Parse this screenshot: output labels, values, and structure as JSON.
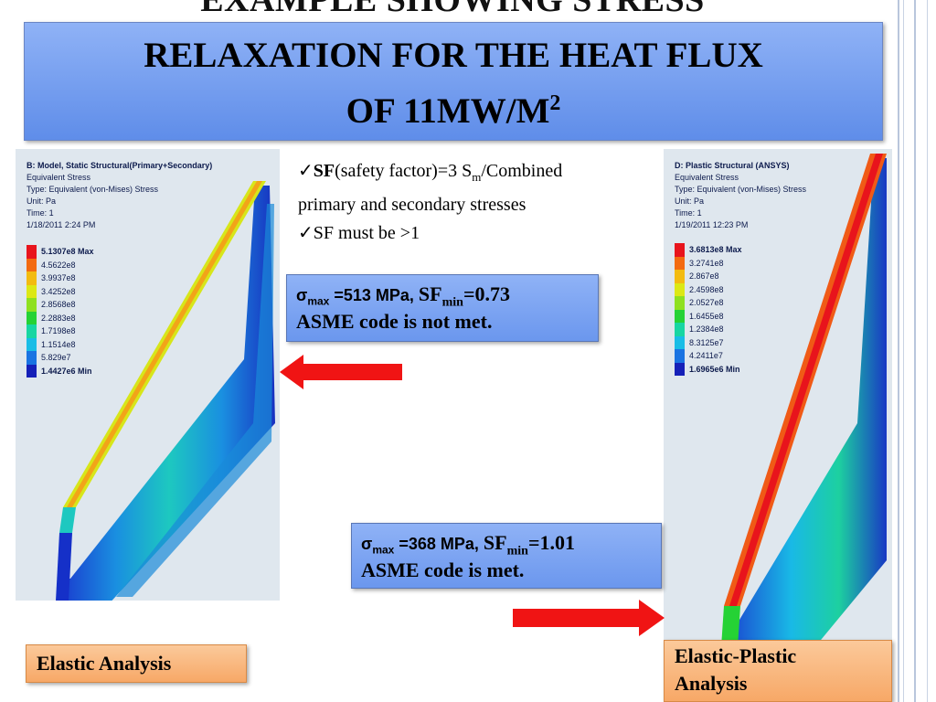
{
  "slide": {
    "title_cut": "EXAMPLE SHOWING STRESS",
    "title_line1": "RELAXATION  FOR THE HEAT FLUX",
    "title_line2": "OF 11MW/M",
    "title_sup": "2"
  },
  "bullets": [
    {
      "check": "✓",
      "bold": "SF",
      "text_a": "(safety factor)=3 S",
      "sub": "m",
      "text_b": "/Combined"
    },
    {
      "text": "primary and secondary stresses"
    },
    {
      "check": "✓",
      "text": "SF must be >1"
    }
  ],
  "left_panel": {
    "header": [
      "B: Model, Static Structural(Primary+Secondary)",
      "Equivalent Stress",
      "Type: Equivalent (von-Mises) Stress",
      "Unit: Pa",
      "Time: 1",
      "1/18/2011 2:24 PM"
    ],
    "legend": [
      {
        "label": "5.1307e8 Max",
        "color": "#e8141c"
      },
      {
        "label": "4.5622e8",
        "color": "#f36a10"
      },
      {
        "label": "3.9937e8",
        "color": "#f3bb10"
      },
      {
        "label": "3.4252e8",
        "color": "#dce815"
      },
      {
        "label": "2.8568e8",
        "color": "#8ee020"
      },
      {
        "label": "2.2883e8",
        "color": "#25d235"
      },
      {
        "label": "1.7198e8",
        "color": "#17d6a2"
      },
      {
        "label": "1.1514e8",
        "color": "#18bde6"
      },
      {
        "label": "5.829e7",
        "color": "#1973e2"
      },
      {
        "label": "1.4427e6 Min",
        "color": "#1520b8"
      }
    ]
  },
  "right_panel": {
    "header": [
      "D: Plastic Structural (ANSYS)",
      "Equivalent Stress",
      "Type: Equivalent (von-Mises) Stress",
      "Unit: Pa",
      "Time: 1",
      "1/19/2011 12:23 PM"
    ],
    "legend": [
      {
        "label": "3.6813e8 Max",
        "color": "#e8141c"
      },
      {
        "label": "3.2741e8",
        "color": "#f36a10"
      },
      {
        "label": "2.867e8",
        "color": "#f3bb10"
      },
      {
        "label": "2.4598e8",
        "color": "#dce815"
      },
      {
        "label": "2.0527e8",
        "color": "#8ee020"
      },
      {
        "label": "1.6455e8",
        "color": "#25d235"
      },
      {
        "label": "1.2384e8",
        "color": "#17d6a2"
      },
      {
        "label": "8.3125e7",
        "color": "#18bde6"
      },
      {
        "label": "4.2411e7",
        "color": "#1973e2"
      },
      {
        "label": "1.6965e6 Min",
        "color": "#1520b8"
      }
    ]
  },
  "result_elastic": {
    "sigma": "σ",
    "sigma_sub": "max",
    "sigma_val": " =513 MPa, ",
    "sf": "SF",
    "sf_sub": "min",
    "sf_val": "=0.73",
    "line2": "ASME code is not met."
  },
  "result_plastic": {
    "sigma": "σ",
    "sigma_sub": "max",
    "sigma_val": " =368 MPa, ",
    "sf": "SF",
    "sf_sub": "min",
    "sf_val": "=1.01",
    "line2": "ASME code is met."
  },
  "labels": {
    "elastic": "Elastic Analysis",
    "plastic_line1": "Elastic-Plastic",
    "plastic_line2": "Analysis"
  },
  "colors": {
    "title_box": "#7aa2f0",
    "label_box": "#f9b77c",
    "arrow": "#f01414"
  }
}
